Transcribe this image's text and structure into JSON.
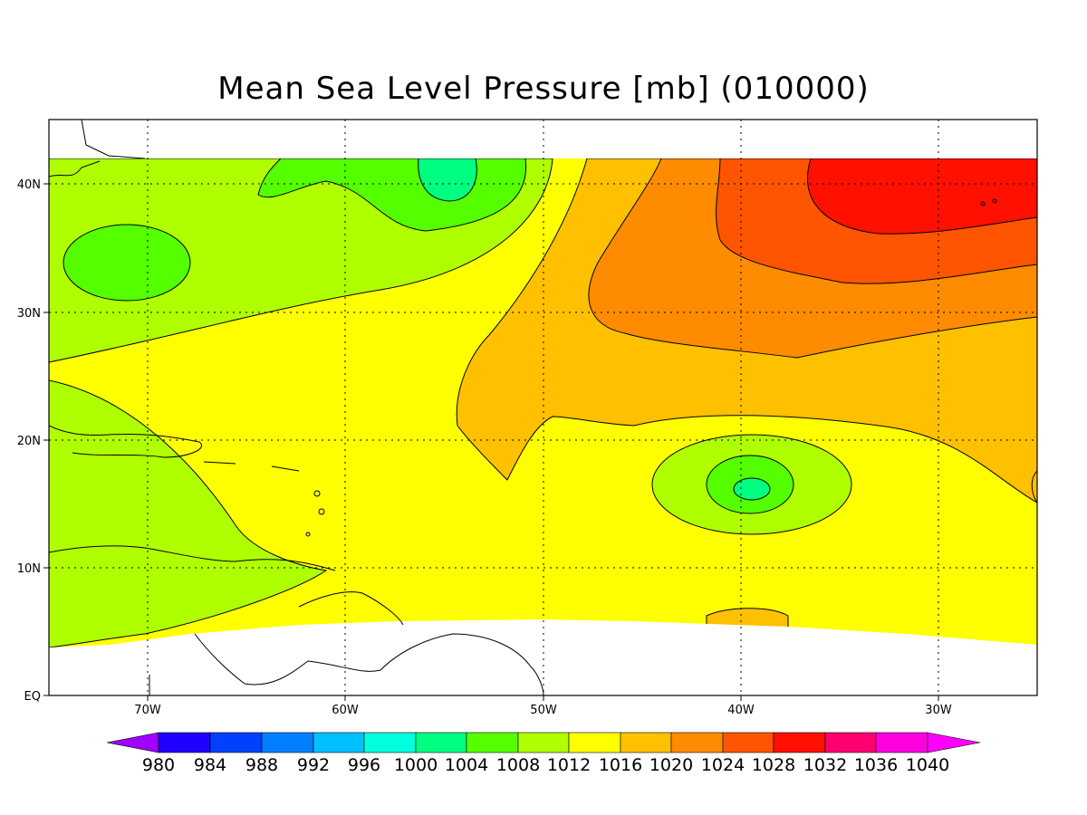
{
  "map": {
    "title": "Mean Sea Level Pressure [mb] (010000)",
    "lon_labels": [
      "70W",
      "60W",
      "50W",
      "40W",
      "30W"
    ],
    "lat_labels": [
      "40N",
      "30N",
      "20N",
      "10N",
      "EQ"
    ],
    "lon_range": [
      -75,
      -25
    ],
    "lat_range": [
      0,
      45
    ],
    "grid": "dotted",
    "colorbar": {
      "position": "bottom",
      "labels": [
        "980",
        "984",
        "988",
        "992",
        "996",
        "1000",
        "1004",
        "1008",
        "1012",
        "1016",
        "1020",
        "1024",
        "1028",
        "1032",
        "1036",
        "1040"
      ],
      "colors": [
        "#a000ff",
        "#2000ff",
        "#0040ff",
        "#0080ff",
        "#00c0ff",
        "#00ffdd",
        "#00ff80",
        "#55ff00",
        "#b0ff00",
        "#ffff00",
        "#ffc000",
        "#ff8c00",
        "#ff5500",
        "#ff1000",
        "#ff0070",
        "#ff00e0",
        "#ff00ff"
      ]
    }
  }
}
